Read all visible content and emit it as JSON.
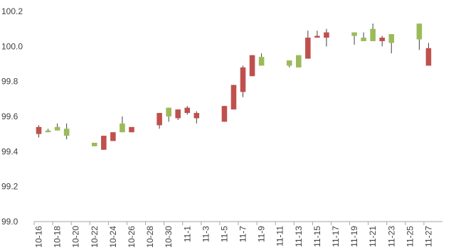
{
  "chart_data": {
    "type": "candlestick",
    "title": "",
    "xlabel": "",
    "ylabel": "",
    "ylim": [
      99.0,
      100.2
    ],
    "y_ticks": [
      "99.0",
      "99.2",
      "99.4",
      "99.6",
      "99.8",
      "100.0",
      "100.2"
    ],
    "grid": false,
    "legend": "none",
    "colors": {
      "up": "#9BBB59",
      "down": "#C0504D",
      "wick": "#404040",
      "axis": "#A6A6A6"
    },
    "x_tick_labels": [
      "10-16",
      "10-18",
      "10-20",
      "10-22",
      "10-24",
      "10-26",
      "10-28",
      "10-30",
      "11-1",
      "11-3",
      "11-5",
      "11-7",
      "11-9",
      "11-11",
      "11-13",
      "11-15",
      "11-17",
      "11-19",
      "11-21",
      "11-23",
      "11-25",
      "11-27"
    ],
    "candles": [
      {
        "date": "10-16",
        "open": 99.54,
        "high": 99.55,
        "low": 99.48,
        "close": 99.5
      },
      {
        "date": "10-17",
        "open": 99.51,
        "high": 99.53,
        "low": 99.51,
        "close": 99.52
      },
      {
        "date": "10-18",
        "open": 99.52,
        "high": 99.56,
        "low": 99.52,
        "close": 99.54
      },
      {
        "date": "10-19",
        "open": 99.49,
        "high": 99.56,
        "low": 99.47,
        "close": 99.53
      },
      {
        "date": "10-22",
        "open": 99.43,
        "high": 99.45,
        "low": 99.43,
        "close": 99.45
      },
      {
        "date": "10-23",
        "open": 99.49,
        "high": 99.49,
        "low": 99.41,
        "close": 99.41
      },
      {
        "date": "10-24",
        "open": 99.51,
        "high": 99.51,
        "low": 99.46,
        "close": 99.46
      },
      {
        "date": "10-25",
        "open": 99.51,
        "high": 99.6,
        "low": 99.51,
        "close": 99.56
      },
      {
        "date": "10-26",
        "open": 99.54,
        "high": 99.54,
        "low": 99.51,
        "close": 99.51
      },
      {
        "date": "10-29",
        "open": 99.62,
        "high": 99.62,
        "low": 99.53,
        "close": 99.55
      },
      {
        "date": "10-30",
        "open": 99.6,
        "high": 99.65,
        "low": 99.57,
        "close": 99.65
      },
      {
        "date": "10-31",
        "open": 99.64,
        "high": 99.64,
        "low": 99.58,
        "close": 99.59
      },
      {
        "date": "11-1",
        "open": 99.65,
        "high": 99.66,
        "low": 99.61,
        "close": 99.62
      },
      {
        "date": "11-2",
        "open": 99.62,
        "high": 99.63,
        "low": 99.56,
        "close": 99.59
      },
      {
        "date": "11-5",
        "open": 99.66,
        "high": 99.66,
        "low": 99.57,
        "close": 99.57
      },
      {
        "date": "11-6",
        "open": 99.78,
        "high": 99.78,
        "low": 99.64,
        "close": 99.64
      },
      {
        "date": "11-7",
        "open": 99.88,
        "high": 99.89,
        "low": 99.71,
        "close": 99.74
      },
      {
        "date": "11-8",
        "open": 99.95,
        "high": 99.95,
        "low": 99.83,
        "close": 99.83
      },
      {
        "date": "11-9",
        "open": 99.89,
        "high": 99.96,
        "low": 99.89,
        "close": 99.94
      },
      {
        "date": "11-12",
        "open": 99.89,
        "high": 99.91,
        "low": 99.88,
        "close": 99.92
      },
      {
        "date": "11-13",
        "open": 99.88,
        "high": 99.95,
        "low": 99.88,
        "close": 99.95
      },
      {
        "date": "11-14",
        "open": 100.05,
        "high": 100.09,
        "low": 99.93,
        "close": 99.93
      },
      {
        "date": "11-15",
        "open": 100.06,
        "high": 100.09,
        "low": 100.05,
        "close": 100.05
      },
      {
        "date": "11-16",
        "open": 100.08,
        "high": 100.1,
        "low": 100.0,
        "close": 100.05
      },
      {
        "date": "11-19",
        "open": 100.06,
        "high": 100.08,
        "low": 100.01,
        "close": 100.08
      },
      {
        "date": "11-20",
        "open": 100.03,
        "high": 100.08,
        "low": 100.03,
        "close": 100.05
      },
      {
        "date": "11-21",
        "open": 100.03,
        "high": 100.13,
        "low": 100.03,
        "close": 100.1
      },
      {
        "date": "11-22",
        "open": 100.05,
        "high": 100.06,
        "low": 100.0,
        "close": 100.03
      },
      {
        "date": "11-23",
        "open": 100.02,
        "high": 100.07,
        "low": 99.96,
        "close": 100.07
      },
      {
        "date": "11-26",
        "open": 100.04,
        "high": 100.13,
        "low": 99.98,
        "close": 100.13
      },
      {
        "date": "11-27",
        "open": 99.99,
        "high": 100.02,
        "low": 99.89,
        "close": 99.89
      }
    ]
  }
}
